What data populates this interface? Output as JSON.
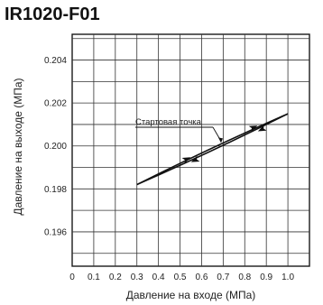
{
  "chart_data": {
    "type": "line",
    "title": "IR1020-F01",
    "xlabel": "Давление на входе (МПа)",
    "ylabel": "Давление на выходе (МПа)",
    "xlim": [
      0,
      1.1
    ],
    "ylim": [
      0.1944,
      0.2052
    ],
    "grid": true,
    "x_ticks": [
      0,
      0.1,
      0.2,
      0.3,
      0.4,
      0.5,
      0.6,
      0.7,
      0.8,
      0.9,
      1.0
    ],
    "x_tick_labels": [
      "0",
      "0.1",
      "0.2",
      "0.3",
      "0.4",
      "0.5",
      "0.6",
      "0.7",
      "0.8",
      "0.9",
      "1.0"
    ],
    "y_ticks": [
      0.196,
      0.198,
      0.2,
      0.202,
      0.204
    ],
    "y_tick_labels": [
      "0.196",
      "0.198",
      "0.200",
      "0.202",
      "0.204"
    ],
    "series": [
      {
        "x": [
          0.3,
          1.0
        ],
        "y": [
          0.1982,
          0.2015
        ]
      },
      {
        "x": [
          0.3,
          1.0
        ],
        "y": [
          0.1982,
          0.2015
        ]
      }
    ],
    "annotations": [
      {
        "text": "Стартовая точка",
        "x": 0.69,
        "y": 0.2001
      }
    ]
  }
}
